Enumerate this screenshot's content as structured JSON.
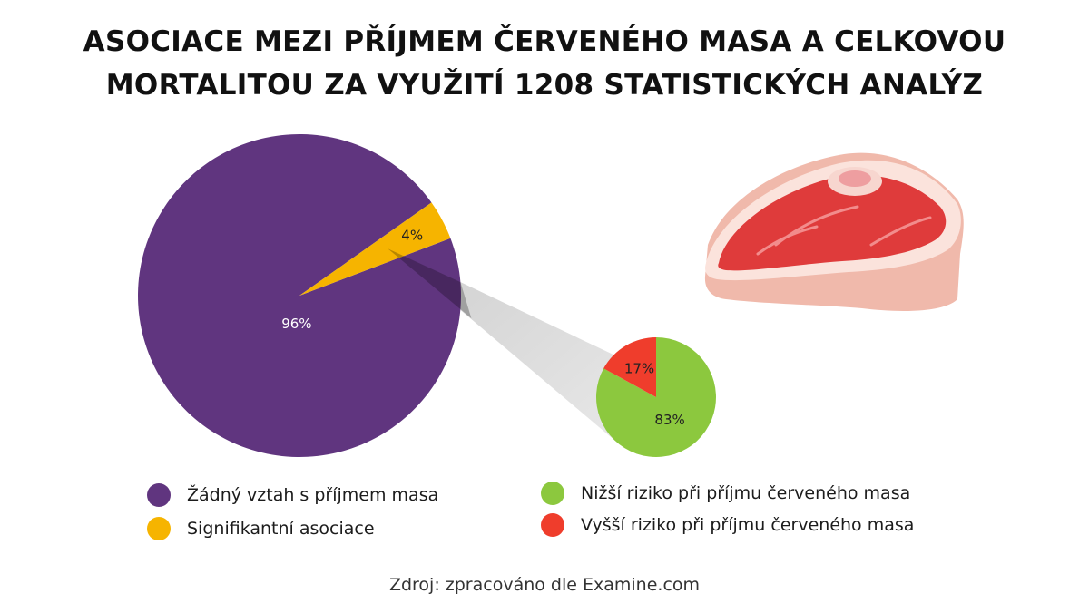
{
  "title": {
    "line1": "ASOCIACE MEZI PŘÍJMEM ČERVENÉHO MASA A CELKOVOU",
    "line2": "MORTALITOU ZA VYUŽITÍ 1208 STATISTICKÝCH ANALÝZ"
  },
  "chart_data": [
    {
      "type": "pie",
      "slices": [
        {
          "label": "Žádný vztah s příjmem masa",
          "value": 96,
          "display": "96%",
          "color": "#60357f"
        },
        {
          "label": "Signifikantní asociace",
          "value": 4,
          "display": "4%",
          "color": "#f6b400"
        }
      ]
    },
    {
      "type": "pie",
      "slices": [
        {
          "label": "Nižší riziko při příjmu červeného masa",
          "value": 83,
          "display": "83%",
          "color": "#8cc83e"
        },
        {
          "label": "Vyšší riziko při příjmu červeného masa",
          "value": 17,
          "display": "17%",
          "color": "#ef3d2c"
        }
      ]
    }
  ],
  "legend": {
    "items": [
      {
        "label": "Žádný vztah s příjmem masa",
        "color": "#60357f"
      },
      {
        "label": "Signifikantní asociace",
        "color": "#f6b400"
      },
      {
        "label": "Nižší riziko při příjmu červeného masa",
        "color": "#8cc83e"
      },
      {
        "label": "Vyšší riziko při příjmu červeného masa",
        "color": "#ef3d2c"
      }
    ]
  },
  "source": "Zdroj: zpracováno dle Examine.com",
  "illustration": {
    "icon": "steak-icon"
  }
}
